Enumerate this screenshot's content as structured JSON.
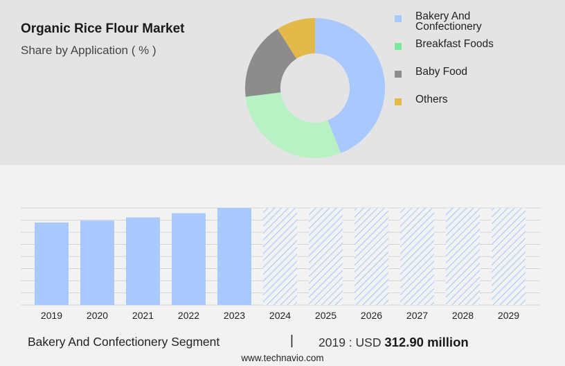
{
  "header": {
    "title": "Organic Rice Flour Market",
    "subtitle": "Share by Application ( % )"
  },
  "legend": [
    {
      "label": "Bakery And\nConfectionery",
      "color": "#a8c8ff"
    },
    {
      "label": "Breakfast Foods",
      "color": "#7de89a"
    },
    {
      "label": "Baby Food",
      "color": "#8c8c8c"
    },
    {
      "label": "Others",
      "color": "#e3b94a"
    }
  ],
  "chart_data": [
    {
      "type": "pie",
      "categories": [
        "Bakery And Confectionery",
        "Breakfast Foods",
        "Baby Food",
        "Others"
      ],
      "values": [
        44,
        29,
        18,
        9
      ],
      "colors": [
        "#a8c8ff",
        "#b8f2c4",
        "#8c8c8c",
        "#e3b94a"
      ],
      "donut": true
    },
    {
      "type": "bar",
      "categories": [
        "2019",
        "2020",
        "2021",
        "2022",
        "2023",
        "2024",
        "2025",
        "2026",
        "2027",
        "2028",
        "2029"
      ],
      "values": [
        312.9,
        320,
        332,
        348,
        368,
        null,
        null,
        null,
        null,
        null,
        null
      ],
      "forecast_from": "2024",
      "bar_color": "#a8c8ff",
      "grid": true
    }
  ],
  "footer": {
    "segment": "Bakery And Confectionery Segment",
    "separator": "|",
    "value_prefix": "2019 : USD",
    "value": "312.90 million",
    "source": "www.technavio.com"
  }
}
